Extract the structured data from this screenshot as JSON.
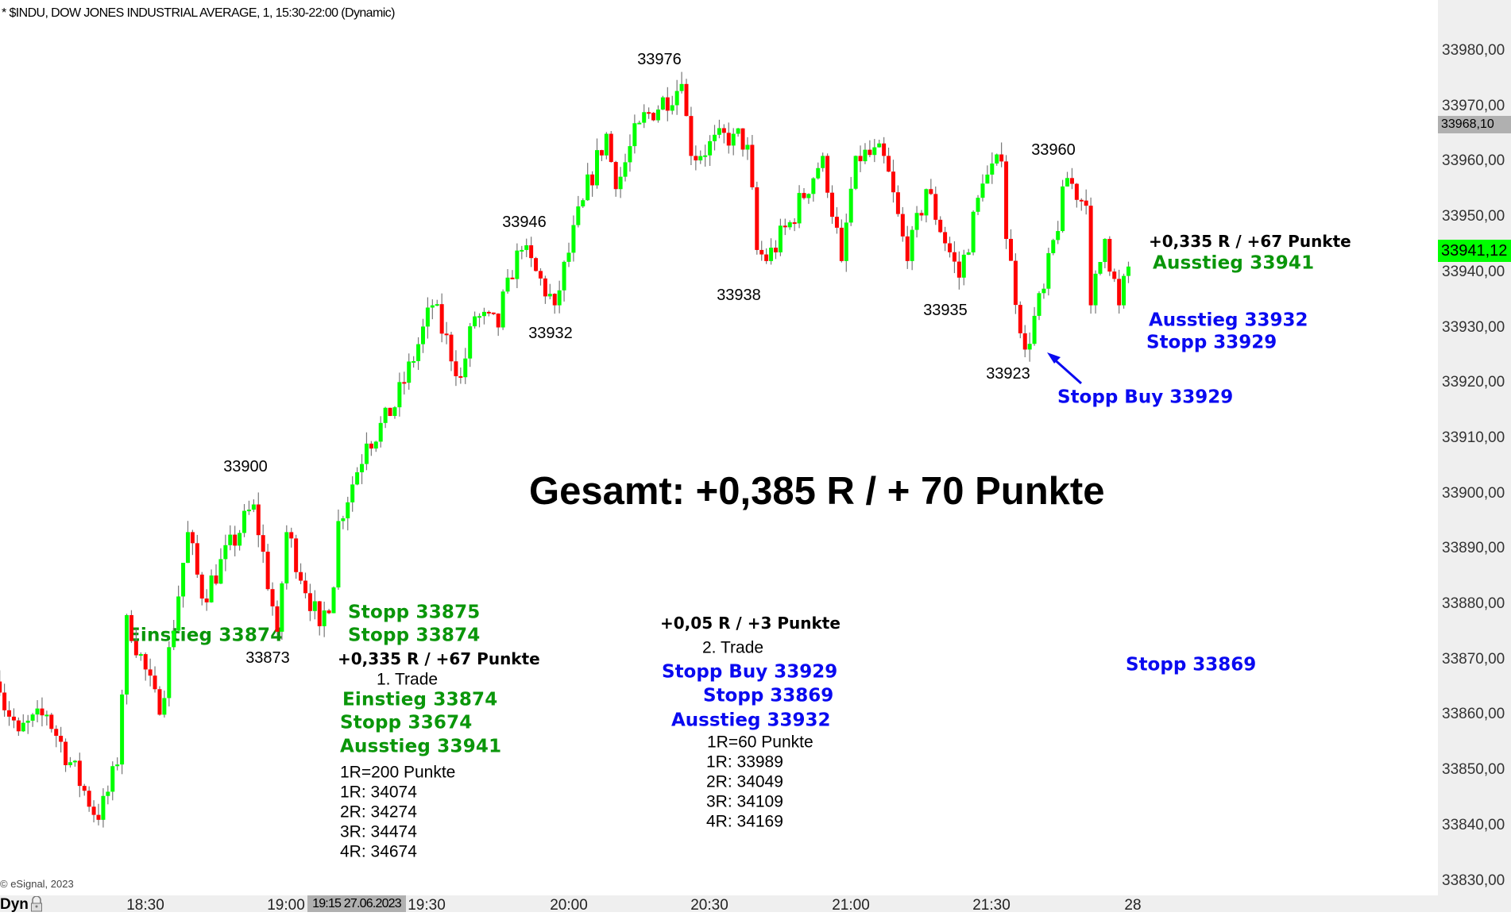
{
  "header": {
    "title": "* $INDU, DOW JONES INDUSTRIAL AVERAGE, 1, 15:30-22:00 (Dynamic)"
  },
  "footer": {
    "copyright": "© eSignal, 2023",
    "mode": "Dyn",
    "lock_icon": "padlock-icon",
    "crosshair_time": "19:15 27.06.2023"
  },
  "colors": {
    "up": "#00ff00",
    "down": "#ff0000",
    "green_text": "#0a960a",
    "blue_text": "#0a0af0",
    "last_price_badge": "#00ff00",
    "crosshair_badge": "#b0b0b0"
  },
  "price_badges": {
    "last": "33941,12",
    "crosshair": "33968,10"
  },
  "annotations": {
    "swing_labels": [
      "33976",
      "33946",
      "33932",
      "33938",
      "33935",
      "33923",
      "33960",
      "33900",
      "33873"
    ],
    "entry_left": "Einstieg 33874",
    "total": "Gesamt: +0,385 R / + 70 Punkte",
    "trade1": {
      "stop1": "Stopp 33875",
      "stop2": "Stopp 33874",
      "result": "+0,335 R / +67 Punkte",
      "name": "1. Trade",
      "entry": "Einstieg 33874",
      "stop": "Stopp 33674",
      "exit": "Ausstieg 33941",
      "r": "1R=200 Punkte",
      "targets": [
        "1R: 34074",
        "2R: 34274",
        "3R: 34474",
        "4R: 34674"
      ]
    },
    "trade2": {
      "result": "+0,05 R / +3 Punkte",
      "name": "2. Trade",
      "entry": "Stopp Buy 33929",
      "stop": "Stopp 33869",
      "exit": "Ausstieg 33932",
      "r": "1R=60 Punkte",
      "targets": [
        "1R: 33989",
        "2R: 34049",
        "3R: 34109",
        "4R: 34169"
      ]
    },
    "right": {
      "result": "+0,335 R / +67 Punkte",
      "exit_green": "Ausstieg 33941",
      "exit_blue": "Ausstieg 33932",
      "stop": "Stopp 33929",
      "stop_buy": "Stopp Buy 33929",
      "stop_low": "Stopp 33869"
    }
  },
  "chart_data": {
    "type": "candlestick",
    "interval": "1 min",
    "ylim": [
      33830,
      33980
    ],
    "y_ticks": [
      "33980,00",
      "33970,00",
      "33960,00",
      "33950,00",
      "33940,00",
      "33930,00",
      "33920,00",
      "33910,00",
      "33900,00",
      "33890,00",
      "33880,00",
      "33870,00",
      "33860,00",
      "33850,00",
      "33840,00",
      "33830,00"
    ],
    "x_ticks": [
      "18:30",
      "19:00",
      "19:30",
      "20:00",
      "20:30",
      "21:00",
      "21:30",
      "28"
    ],
    "price_path": [
      [
        "17:59",
        33864
      ],
      [
        "18:03",
        33857
      ],
      [
        "18:09",
        33860
      ],
      [
        "18:20",
        33841
      ],
      [
        "18:24",
        33851
      ],
      [
        "18:26",
        33878
      ],
      [
        "18:33",
        33860
      ],
      [
        "18:39",
        33893
      ],
      [
        "18:42",
        33881
      ],
      [
        "18:53",
        33898
      ],
      [
        "18:58",
        33875
      ],
      [
        "19:00",
        33893
      ],
      [
        "19:07",
        33876
      ],
      [
        "19:10",
        33883
      ],
      [
        "19:11",
        33895
      ],
      [
        "19:17",
        33909
      ],
      [
        "19:22",
        33914
      ],
      [
        "19:25",
        33920
      ],
      [
        "19:31",
        33934
      ],
      [
        "19:37",
        33921
      ],
      [
        "19:40",
        33932
      ],
      [
        "19:45",
        33930
      ],
      [
        "19:47",
        33939
      ],
      [
        "19:50",
        33944
      ],
      [
        "19:57",
        33934
      ],
      [
        "20:03",
        33953
      ],
      [
        "20:08",
        33965
      ],
      [
        "20:10",
        33955
      ],
      [
        "20:15",
        33967
      ],
      [
        "20:24",
        33974
      ],
      [
        "20:26",
        33961
      ],
      [
        "20:35",
        33965
      ],
      [
        "20:38",
        33963
      ],
      [
        "20:40",
        33944
      ],
      [
        "20:42",
        33942
      ],
      [
        "20:47",
        33949
      ],
      [
        "20:54",
        33961
      ],
      [
        "20:58",
        33942
      ],
      [
        "21:01",
        33961
      ],
      [
        "21:07",
        33961
      ],
      [
        "21:12",
        33942
      ],
      [
        "21:16",
        33955
      ],
      [
        "21:23",
        33939
      ],
      [
        "21:28",
        33956
      ],
      [
        "21:32",
        33960
      ],
      [
        "21:33",
        33946
      ],
      [
        "21:37",
        33926
      ],
      [
        "21:41",
        33937
      ],
      [
        "21:46",
        33957
      ],
      [
        "21:50",
        33952
      ],
      [
        "21:51",
        33934
      ],
      [
        "21:54",
        33946
      ],
      [
        "21:57",
        33934
      ],
      [
        "21:59",
        33941
      ]
    ]
  }
}
